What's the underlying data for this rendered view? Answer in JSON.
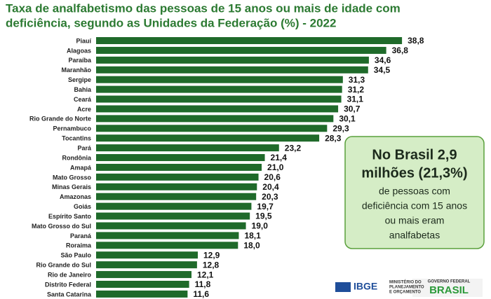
{
  "chart_data": {
    "type": "barh",
    "title": [
      "Taxa de analfabetismo das pessoas de 15 anos ou mais de idade com",
      "deficiência, segundo as Unidades da Federação (%) - 2022"
    ],
    "categories": [
      "Piauí",
      "Alagoas",
      "Paraíba",
      "Maranhão",
      "Sergipe",
      "Bahia",
      "Ceará",
      "Acre",
      "Rio Grande do Norte",
      "Pernambuco",
      "Tocantins",
      "Pará",
      "Rondônia",
      "Amapá",
      "Mato Grosso",
      "Minas Gerais",
      "Amazonas",
      "Goiás",
      "Espírito Santo",
      "Mato Grosso do Sul",
      "Paraná",
      "Roraima",
      "São Paulo",
      "Rio Grande do Sul",
      "Rio de Janeiro",
      "Distrito Federal",
      "Santa Catarina"
    ],
    "values": [
      38.8,
      36.8,
      34.6,
      34.5,
      31.3,
      31.2,
      31.1,
      30.7,
      30.1,
      29.3,
      28.3,
      23.2,
      21.4,
      21.0,
      20.6,
      20.4,
      20.3,
      19.7,
      19.5,
      19.0,
      18.1,
      18.0,
      12.9,
      12.8,
      12.1,
      11.8,
      11.6
    ],
    "value_labels": [
      "38,8",
      "36,8",
      "34,6",
      "34,5",
      "31,3",
      "31,2",
      "31,1",
      "30,7",
      "30,1",
      "29,3",
      "28,3",
      "23,2",
      "21,4",
      "21,0",
      "20,6",
      "20,4",
      "20,3",
      "19,7",
      "19,5",
      "19,0",
      "18,1",
      "18,0",
      "12,9",
      "12,8",
      "12,1",
      "11,8",
      "11,6"
    ],
    "color": "#1f6a2a",
    "annotation": {
      "headline": [
        "No Brasil 2,9",
        "milhões (21,3%)"
      ],
      "text": [
        "de pessoas com",
        "deficiência com 15 anos",
        "ou mais eram",
        "analfabetas"
      ]
    },
    "logos": {
      "ibge": "IBGE",
      "ministry": [
        "MINISTÉRIO DO",
        "PLANEJAMENTO",
        "E ORÇAMENTO"
      ],
      "government": [
        "GOVERNO FEDERAL",
        "BRASIL"
      ]
    }
  }
}
